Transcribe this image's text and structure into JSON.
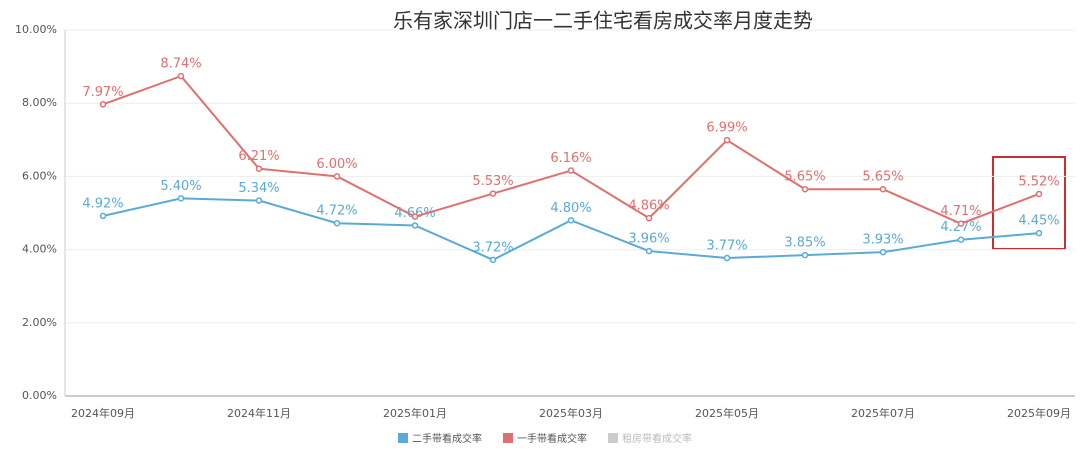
{
  "chart_data": {
    "type": "line",
    "title": "乐有家深圳门店一二手住宅看房成交率月度走势",
    "categories": [
      "2024年09月",
      null,
      "2024年11月",
      null,
      "2025年01月",
      null,
      "2025年03月",
      null,
      "2025年05月",
      null,
      "2025年07月",
      null,
      "2025年09月"
    ],
    "series": [
      {
        "name": "二手带看成交率",
        "color": "#5aaad6",
        "values": [
          4.92,
          5.4,
          5.34,
          4.72,
          4.66,
          3.72,
          4.8,
          3.96,
          3.77,
          3.85,
          3.93,
          4.27,
          4.45
        ],
        "value_labels": [
          "4.92%",
          "5.40%",
          "5.34%",
          "4.72%",
          "4.66%",
          "3.72%",
          "4.80%",
          "3.96%",
          "3.77%",
          "3.85%",
          "3.93%",
          "4.27%",
          "4.45%"
        ]
      },
      {
        "name": "一手带看成交率",
        "color": "#e07070",
        "values": [
          7.97,
          8.74,
          6.21,
          6.0,
          4.9,
          5.53,
          6.16,
          4.86,
          6.99,
          5.65,
          5.65,
          4.71,
          5.52
        ],
        "value_labels": [
          "7.97%",
          "8.74%",
          "6.21%",
          "6.00%",
          null,
          "5.53%",
          "6.16%",
          "4.86%",
          "6.99%",
          "5.65%",
          "5.65%",
          "4.71%",
          "5.52%"
        ]
      },
      {
        "name": "租房带看成交率",
        "color": "#cccccc",
        "values": [
          null,
          null,
          null,
          null,
          null,
          null,
          null,
          null,
          null,
          null,
          null,
          null,
          null
        ]
      }
    ],
    "ylim": [
      0,
      10
    ],
    "yticks": [
      {
        "value": 0,
        "label": "0.00%"
      },
      {
        "value": 2,
        "label": "2.00%"
      },
      {
        "value": 4,
        "label": "4.00%"
      },
      {
        "value": 6,
        "label": "6.00%"
      },
      {
        "value": 8,
        "label": "8.00%"
      },
      {
        "value": 10,
        "label": "10.00%"
      }
    ],
    "grid": true
  }
}
